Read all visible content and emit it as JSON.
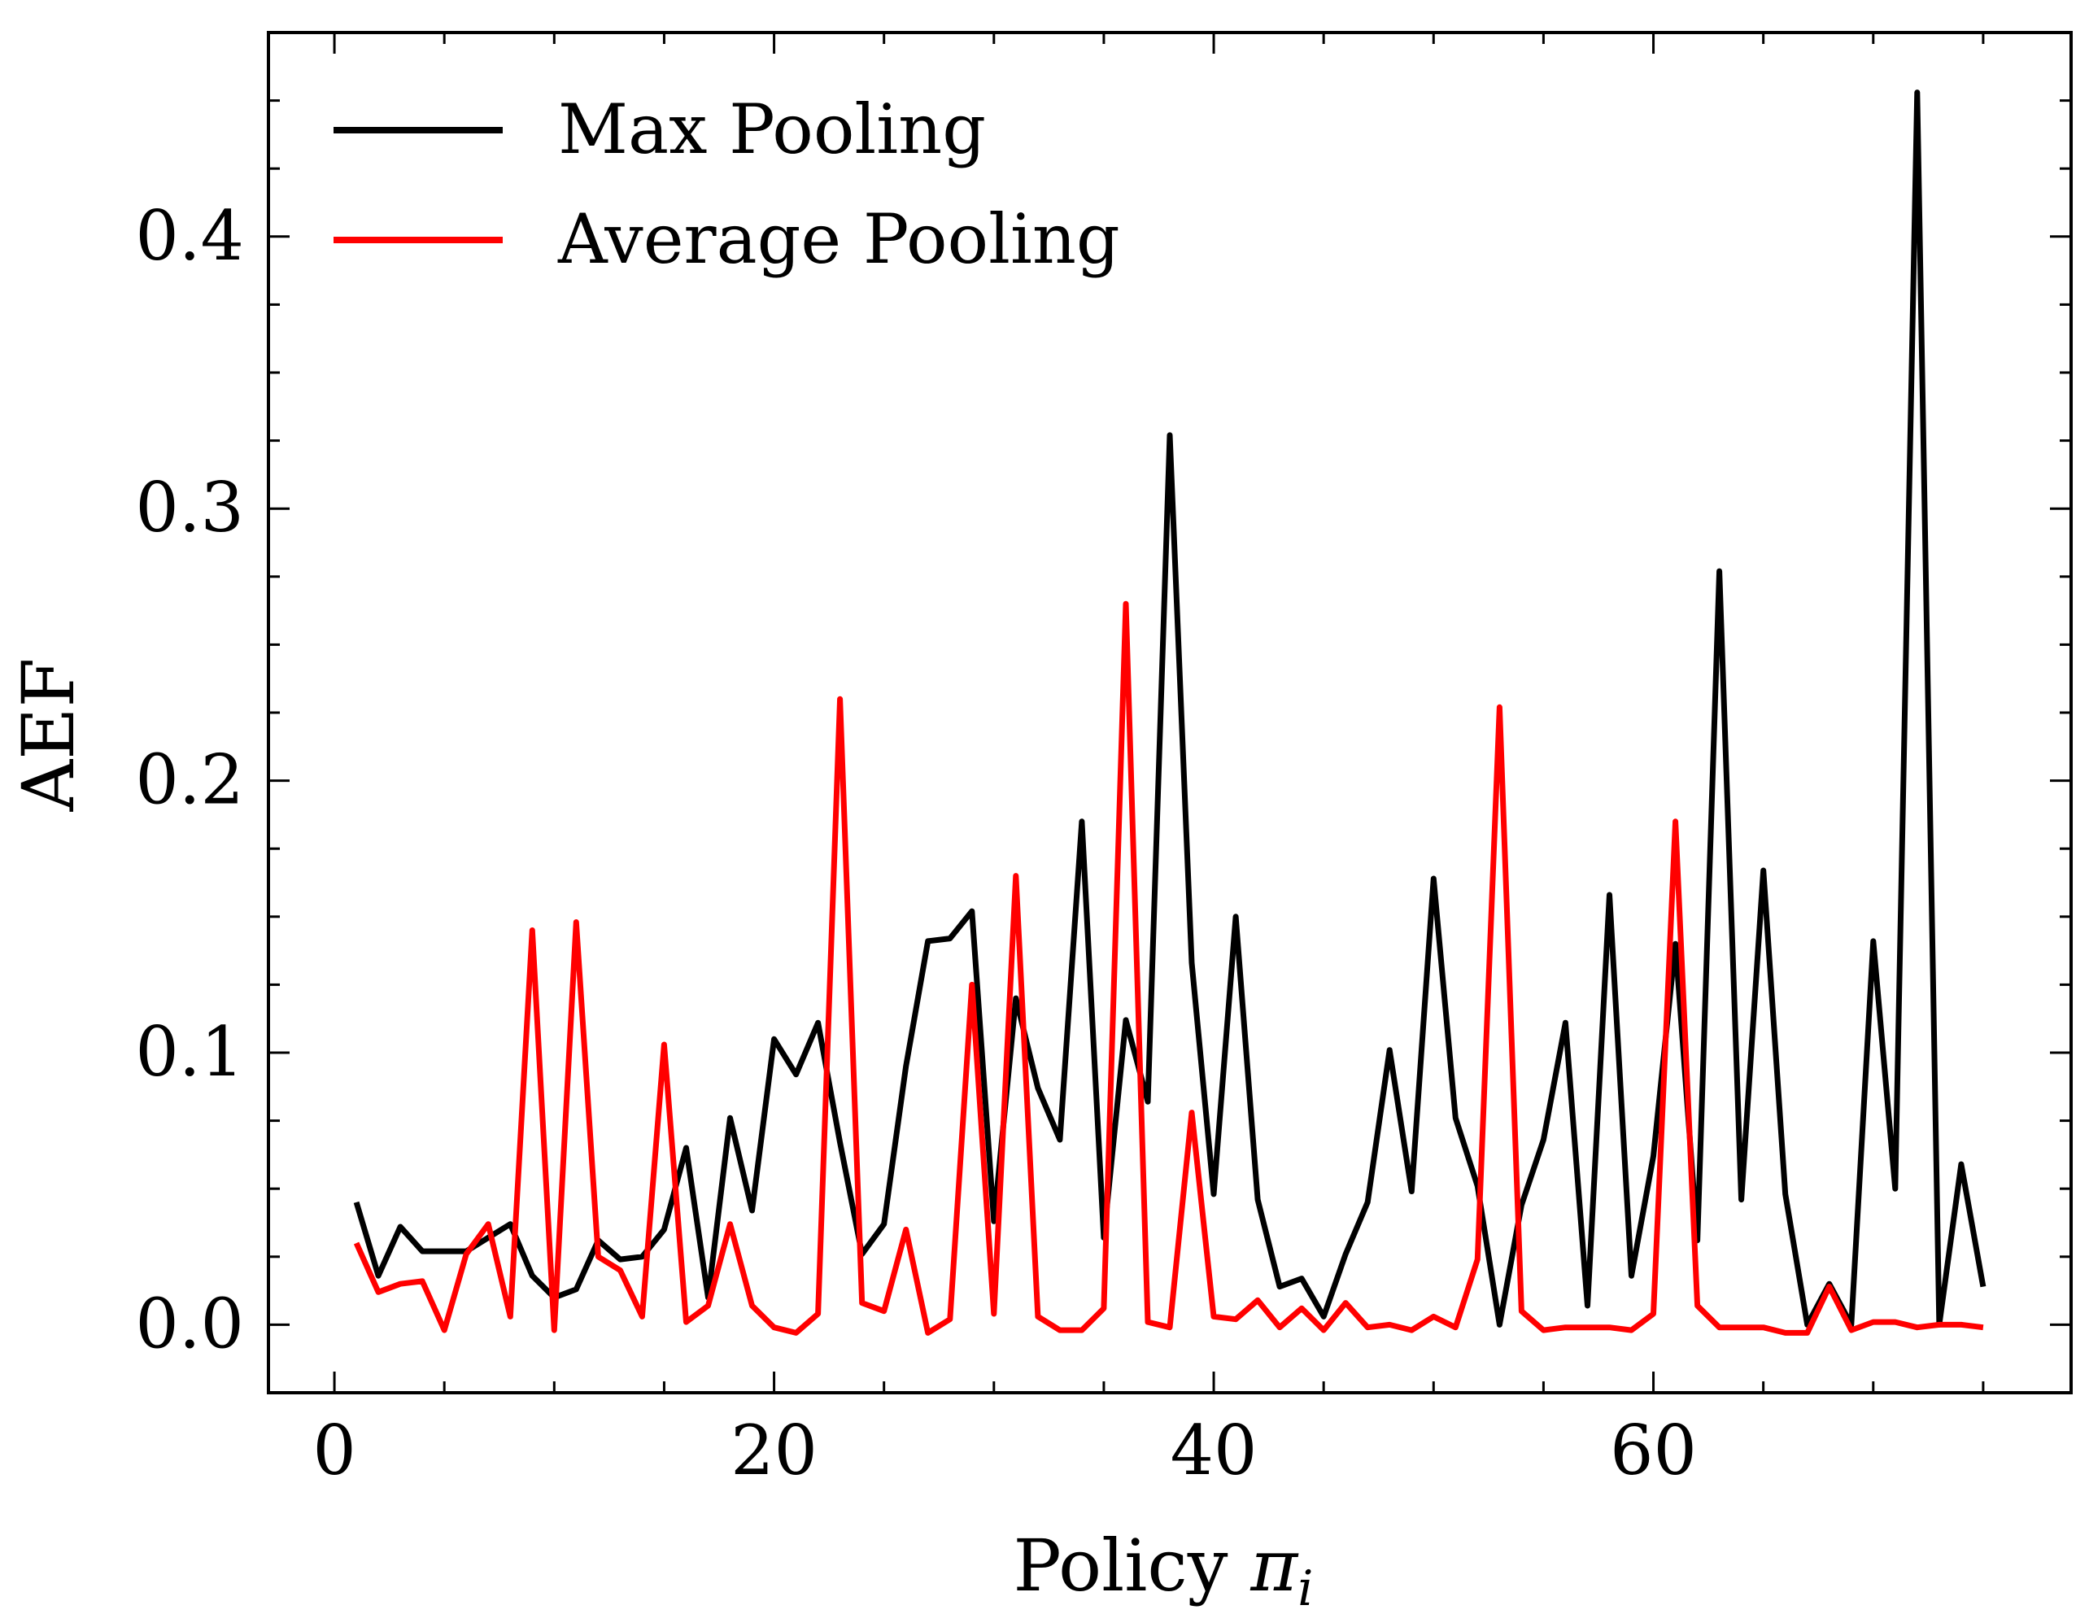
{
  "chart_data": {
    "type": "line",
    "title": "",
    "xlabel": "Policy",
    "xlabel_symbol": "π",
    "xlabel_subscript": "i",
    "ylabel": "AEF",
    "xlim": [
      -3,
      79
    ],
    "ylim": [
      -0.025,
      0.475
    ],
    "grid": false,
    "legend_position": "top-left",
    "x_ticks": [
      0,
      20,
      40,
      60
    ],
    "x_tick_labels": [
      "0",
      "20",
      "40",
      "60"
    ],
    "y_ticks": [
      0.0,
      0.1,
      0.2,
      0.3,
      0.4
    ],
    "y_tick_labels": [
      "0.0",
      "0.1",
      "0.2",
      "0.3",
      "0.4"
    ],
    "x": [
      1,
      2,
      3,
      4,
      5,
      6,
      7,
      8,
      9,
      10,
      11,
      12,
      13,
      14,
      15,
      16,
      17,
      18,
      19,
      20,
      21,
      22,
      23,
      24,
      25,
      26,
      27,
      28,
      29,
      30,
      31,
      32,
      33,
      34,
      35,
      36,
      37,
      38,
      39,
      40,
      41,
      42,
      43,
      44,
      45,
      46,
      47,
      48,
      49,
      50,
      51,
      52,
      53,
      54,
      55,
      56,
      57,
      58,
      59,
      60,
      61,
      62,
      63,
      64,
      65,
      66,
      67,
      68,
      69,
      70,
      71,
      72,
      73,
      74,
      75
    ],
    "series": [
      {
        "name": "Max Pooling",
        "color": "#000000",
        "values": [
          0.045,
          0.018,
          0.036,
          0.027,
          0.027,
          0.027,
          0.032,
          0.037,
          0.018,
          0.01,
          0.013,
          0.031,
          0.024,
          0.025,
          0.035,
          0.065,
          0.01,
          0.076,
          0.042,
          0.105,
          0.092,
          0.111,
          0.067,
          0.026,
          0.037,
          0.095,
          0.141,
          0.142,
          0.152,
          0.038,
          0.12,
          0.087,
          0.068,
          0.185,
          0.032,
          0.112,
          0.082,
          0.327,
          0.133,
          0.048,
          0.15,
          0.046,
          0.014,
          0.017,
          0.003,
          0.026,
          0.045,
          0.101,
          0.049,
          0.164,
          0.076,
          0.051,
          0.0,
          0.044,
          0.068,
          0.111,
          0.007,
          0.158,
          0.018,
          0.062,
          0.14,
          0.031,
          0.277,
          0.046,
          0.167,
          0.048,
          0.0,
          0.015,
          0.0,
          0.141,
          0.05,
          0.453,
          0.0,
          0.059,
          0.014
        ]
      },
      {
        "name": "Average Pooling",
        "color": "#ff0000",
        "values": [
          0.03,
          0.012,
          0.015,
          0.016,
          -0.002,
          0.026,
          0.037,
          0.003,
          0.145,
          -0.002,
          0.148,
          0.025,
          0.02,
          0.003,
          0.103,
          0.001,
          0.007,
          0.037,
          0.007,
          -0.001,
          -0.003,
          0.004,
          0.23,
          0.008,
          0.005,
          0.035,
          -0.003,
          0.002,
          0.125,
          0.004,
          0.165,
          0.003,
          -0.002,
          -0.002,
          0.006,
          0.265,
          0.001,
          -0.001,
          0.078,
          0.003,
          0.002,
          0.009,
          -0.001,
          0.006,
          -0.002,
          0.008,
          -0.001,
          0.0,
          -0.002,
          0.003,
          -0.001,
          0.024,
          0.227,
          0.005,
          -0.002,
          -0.001,
          -0.001,
          -0.001,
          -0.002,
          0.004,
          0.185,
          0.007,
          -0.001,
          -0.001,
          -0.001,
          -0.003,
          -0.003,
          0.014,
          -0.002,
          0.001,
          0.001,
          -0.001,
          0.0,
          0.0,
          -0.001
        ]
      }
    ]
  }
}
